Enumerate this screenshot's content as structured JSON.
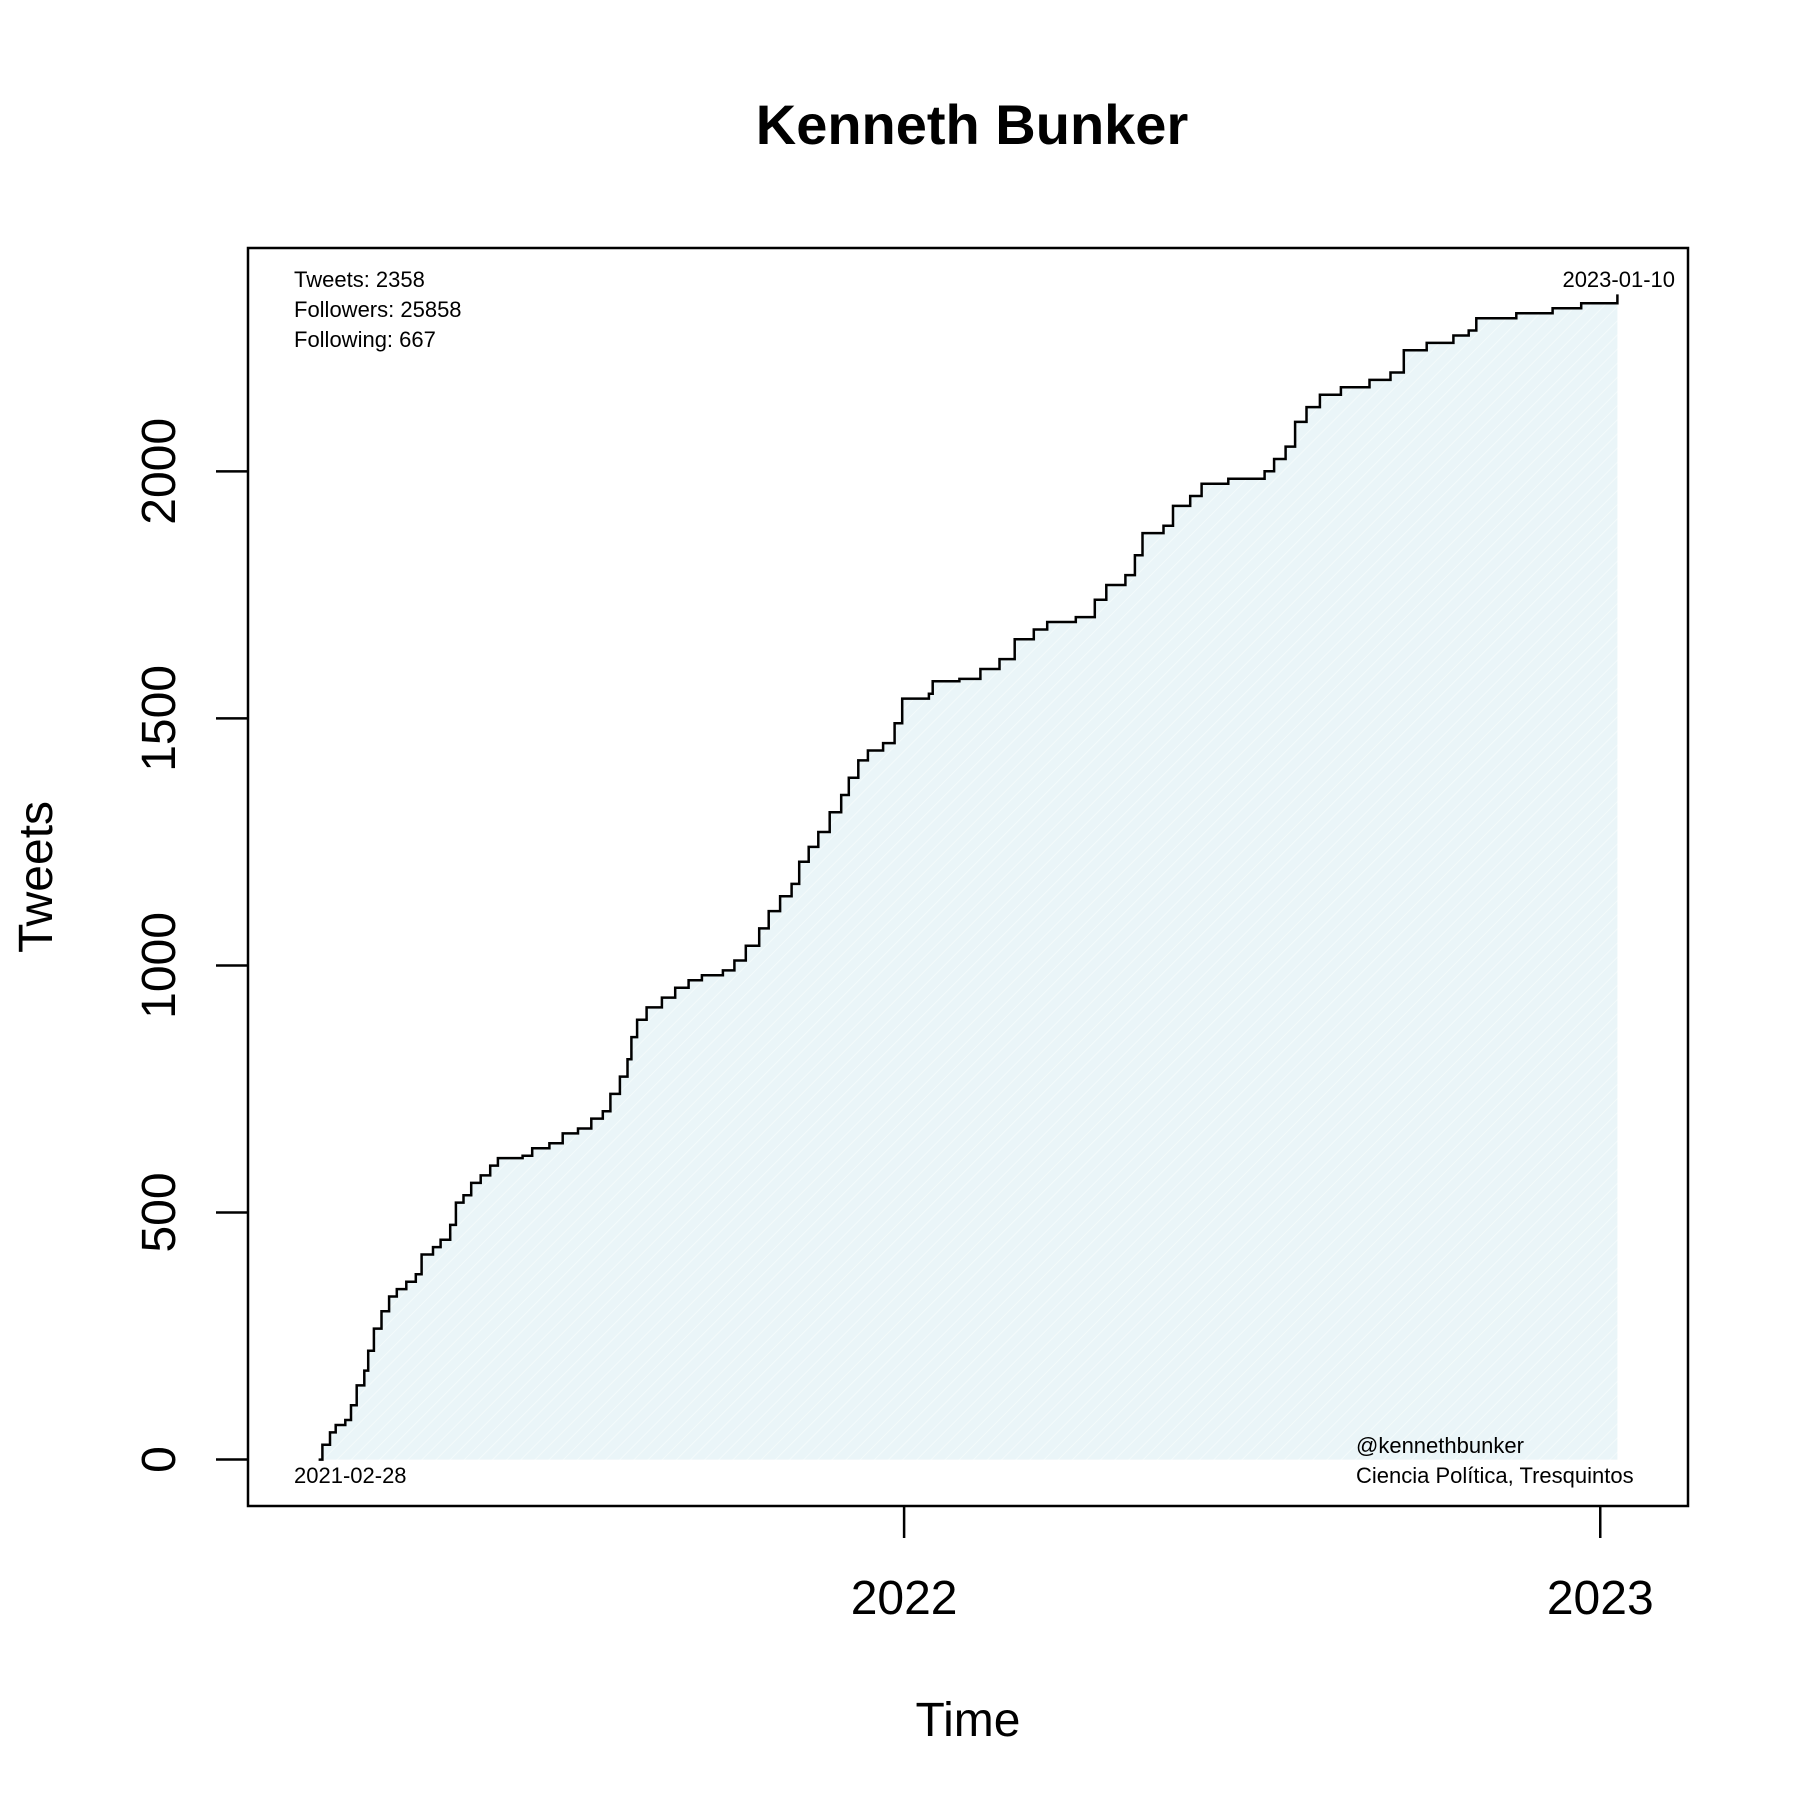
{
  "chart_data": {
    "type": "area",
    "title": "Kenneth Bunker",
    "xlabel": "Time",
    "ylabel": "Tweets",
    "x_ticks": [
      {
        "date": "2022-01-01",
        "label": "2022"
      },
      {
        "date": "2023-01-01",
        "label": "2023"
      }
    ],
    "y_ticks": [
      0,
      500,
      1000,
      1500,
      2000
    ],
    "xlim": [
      "2021-01-22",
      "2023-02-16"
    ],
    "ylim": [
      -94,
      2452
    ],
    "grid": false,
    "line_color": "#000000",
    "fill_color": "#eaf5f8",
    "series": [
      {
        "points": [
          [
            "2021-02-28",
            0
          ],
          [
            "2021-03-02",
            30
          ],
          [
            "2021-03-06",
            55
          ],
          [
            "2021-03-09",
            70
          ],
          [
            "2021-03-14",
            80
          ],
          [
            "2021-03-17",
            110
          ],
          [
            "2021-03-20",
            150
          ],
          [
            "2021-03-24",
            180
          ],
          [
            "2021-03-26",
            220
          ],
          [
            "2021-03-29",
            265
          ],
          [
            "2021-04-02",
            300
          ],
          [
            "2021-04-06",
            330
          ],
          [
            "2021-04-10",
            345
          ],
          [
            "2021-04-15",
            360
          ],
          [
            "2021-04-20",
            375
          ],
          [
            "2021-04-23",
            415
          ],
          [
            "2021-04-29",
            430
          ],
          [
            "2021-05-03",
            445
          ],
          [
            "2021-05-08",
            475
          ],
          [
            "2021-05-11",
            520
          ],
          [
            "2021-05-15",
            535
          ],
          [
            "2021-05-19",
            560
          ],
          [
            "2021-05-24",
            575
          ],
          [
            "2021-05-29",
            595
          ],
          [
            "2021-06-02",
            610
          ],
          [
            "2021-06-15",
            615
          ],
          [
            "2021-06-20",
            630
          ],
          [
            "2021-06-29",
            640
          ],
          [
            "2021-07-06",
            660
          ],
          [
            "2021-07-14",
            670
          ],
          [
            "2021-07-21",
            690
          ],
          [
            "2021-07-27",
            705
          ],
          [
            "2021-07-31",
            740
          ],
          [
            "2021-08-05",
            775
          ],
          [
            "2021-08-09",
            810
          ],
          [
            "2021-08-11",
            855
          ],
          [
            "2021-08-14",
            890
          ],
          [
            "2021-08-19",
            915
          ],
          [
            "2021-08-27",
            935
          ],
          [
            "2021-09-03",
            955
          ],
          [
            "2021-09-10",
            970
          ],
          [
            "2021-09-17",
            980
          ],
          [
            "2021-09-28",
            990
          ],
          [
            "2021-10-04",
            1010
          ],
          [
            "2021-10-10",
            1040
          ],
          [
            "2021-10-17",
            1075
          ],
          [
            "2021-10-22",
            1110
          ],
          [
            "2021-10-28",
            1140
          ],
          [
            "2021-11-03",
            1165
          ],
          [
            "2021-11-07",
            1210
          ],
          [
            "2021-11-12",
            1240
          ],
          [
            "2021-11-17",
            1270
          ],
          [
            "2021-11-23",
            1310
          ],
          [
            "2021-11-29",
            1345
          ],
          [
            "2021-12-03",
            1380
          ],
          [
            "2021-12-08",
            1415
          ],
          [
            "2021-12-13",
            1435
          ],
          [
            "2021-12-21",
            1450
          ],
          [
            "2021-12-27",
            1490
          ],
          [
            "2021-12-31",
            1540
          ],
          [
            "2022-01-14",
            1550
          ],
          [
            "2022-01-16",
            1575
          ],
          [
            "2022-01-30",
            1580
          ],
          [
            "2022-02-10",
            1600
          ],
          [
            "2022-02-20",
            1620
          ],
          [
            "2022-02-28",
            1660
          ],
          [
            "2022-03-10",
            1680
          ],
          [
            "2022-03-17",
            1695
          ],
          [
            "2022-04-01",
            1705
          ],
          [
            "2022-04-11",
            1740
          ],
          [
            "2022-04-17",
            1770
          ],
          [
            "2022-04-27",
            1790
          ],
          [
            "2022-05-02",
            1830
          ],
          [
            "2022-05-06",
            1875
          ],
          [
            "2022-05-17",
            1890
          ],
          [
            "2022-05-22",
            1930
          ],
          [
            "2022-05-31",
            1950
          ],
          [
            "2022-06-06",
            1975
          ],
          [
            "2022-06-20",
            1985
          ],
          [
            "2022-07-09",
            2000
          ],
          [
            "2022-07-14",
            2025
          ],
          [
            "2022-07-20",
            2050
          ],
          [
            "2022-07-25",
            2100
          ],
          [
            "2022-07-31",
            2130
          ],
          [
            "2022-08-07",
            2155
          ],
          [
            "2022-08-18",
            2170
          ],
          [
            "2022-09-02",
            2185
          ],
          [
            "2022-09-13",
            2200
          ],
          [
            "2022-09-20",
            2245
          ],
          [
            "2022-10-02",
            2260
          ],
          [
            "2022-10-16",
            2275
          ],
          [
            "2022-10-24",
            2285
          ],
          [
            "2022-10-28",
            2310
          ],
          [
            "2022-11-18",
            2320
          ],
          [
            "2022-12-07",
            2330
          ],
          [
            "2022-12-22",
            2340
          ],
          [
            "2023-01-10",
            2358
          ]
        ]
      }
    ],
    "annotations": {
      "tweets": "Tweets: 2358",
      "followers": "Followers: 25858",
      "following": "Following: 667",
      "end_date": "2023-01-10",
      "start_date": "2021-02-28",
      "handle": "@kennethbunker",
      "affiliation": "Ciencia Política, Tresquintos"
    }
  }
}
